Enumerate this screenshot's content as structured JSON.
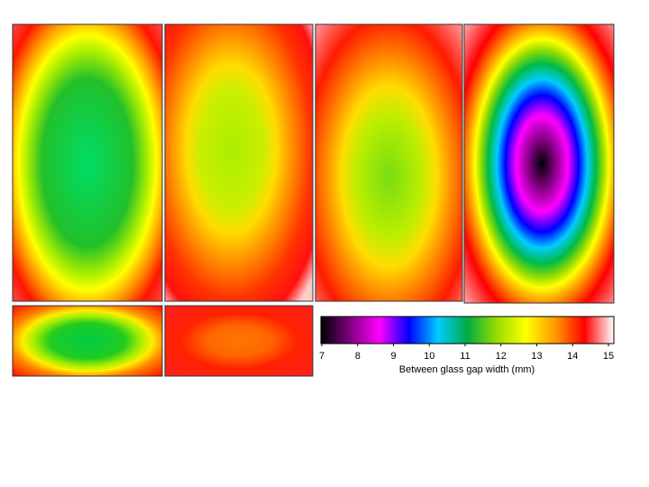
{
  "chart_data": {
    "type": "heatmap",
    "zlim": [
      7,
      15
    ],
    "zticks": [
      7,
      8,
      9,
      10,
      11,
      12,
      13,
      14,
      15
    ],
    "zlabel": "Between glass gap width (mm)",
    "colorscale": [
      "#000000",
      "#800080",
      "#ff00ff",
      "#0000ff",
      "#00ccff",
      "#00aa44",
      "#99dd00",
      "#ffff00",
      "#ff9900",
      "#ff0000",
      "#ffffff"
    ]
  }
}
